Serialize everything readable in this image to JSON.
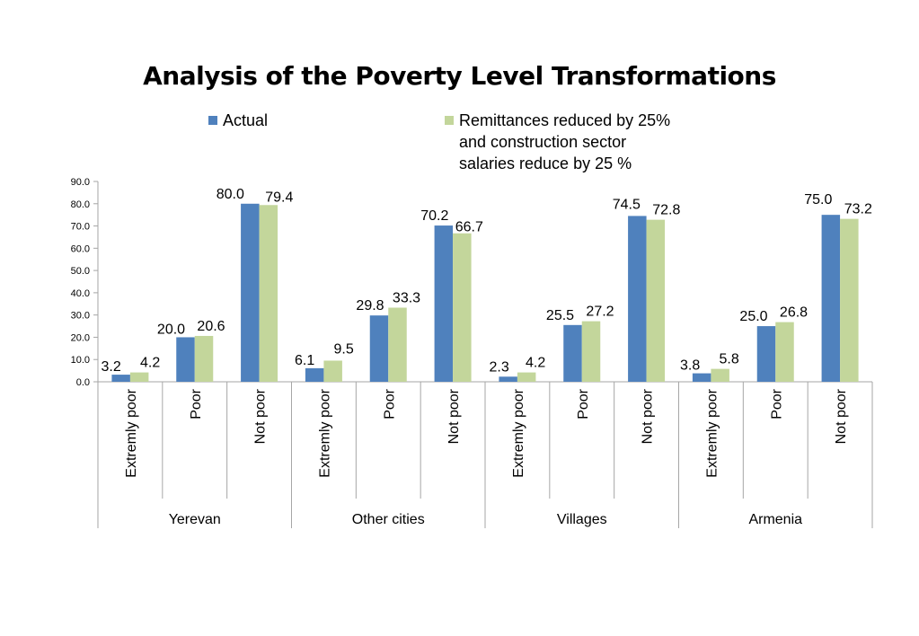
{
  "colors": {
    "actual": "#4f81bd",
    "reduced": "#c3d69b",
    "axis": "#a6a6a6"
  },
  "chart_data": {
    "type": "bar",
    "title": "Analysis of the Poverty Level Transformations",
    "xlabel": "",
    "ylabel": "",
    "ylim": [
      0,
      90
    ],
    "yticks": [
      "0.0",
      "10.0",
      "20.0",
      "30.0",
      "40.0",
      "50.0",
      "60.0",
      "70.0",
      "80.0",
      "90.0"
    ],
    "grid": false,
    "legend_position": "top",
    "groups": [
      "Yerevan",
      "Other cities",
      "Villages",
      "Armenia"
    ],
    "categories": [
      "Extremly poor",
      "Poor",
      "Not poor",
      "Extremly poor",
      "Poor",
      "Not poor",
      "Extremly poor",
      "Poor",
      "Not poor",
      "Extremly poor",
      "Poor",
      "Not poor"
    ],
    "series": [
      {
        "name": "Actual",
        "values": [
          3.2,
          20.0,
          80.0,
          6.1,
          29.8,
          70.2,
          2.3,
          25.5,
          74.5,
          3.8,
          25.0,
          75.0
        ],
        "labels": [
          "3.2",
          "20.0",
          "80.0",
          "6.1",
          "29.8",
          "70.2",
          "2.3",
          "25.5",
          "74.5",
          "3.8",
          "25.0",
          "75.0"
        ]
      },
      {
        "name": "Remittances reduced by 25% and construction sector salaries reduce by 25 %",
        "name_lines": [
          "Remittances reduced by 25%",
          "and construction sector",
          "salaries reduce by 25 %"
        ],
        "values": [
          4.2,
          20.6,
          79.4,
          9.5,
          33.3,
          66.7,
          4.2,
          27.2,
          72.8,
          5.8,
          26.8,
          73.2
        ],
        "labels": [
          "4.2",
          "20.6",
          "79.4",
          "9.5",
          "33.3",
          "66.7",
          "4.2",
          "27.2",
          "72.8",
          "5.8",
          "26.8",
          "73.2"
        ]
      }
    ]
  }
}
